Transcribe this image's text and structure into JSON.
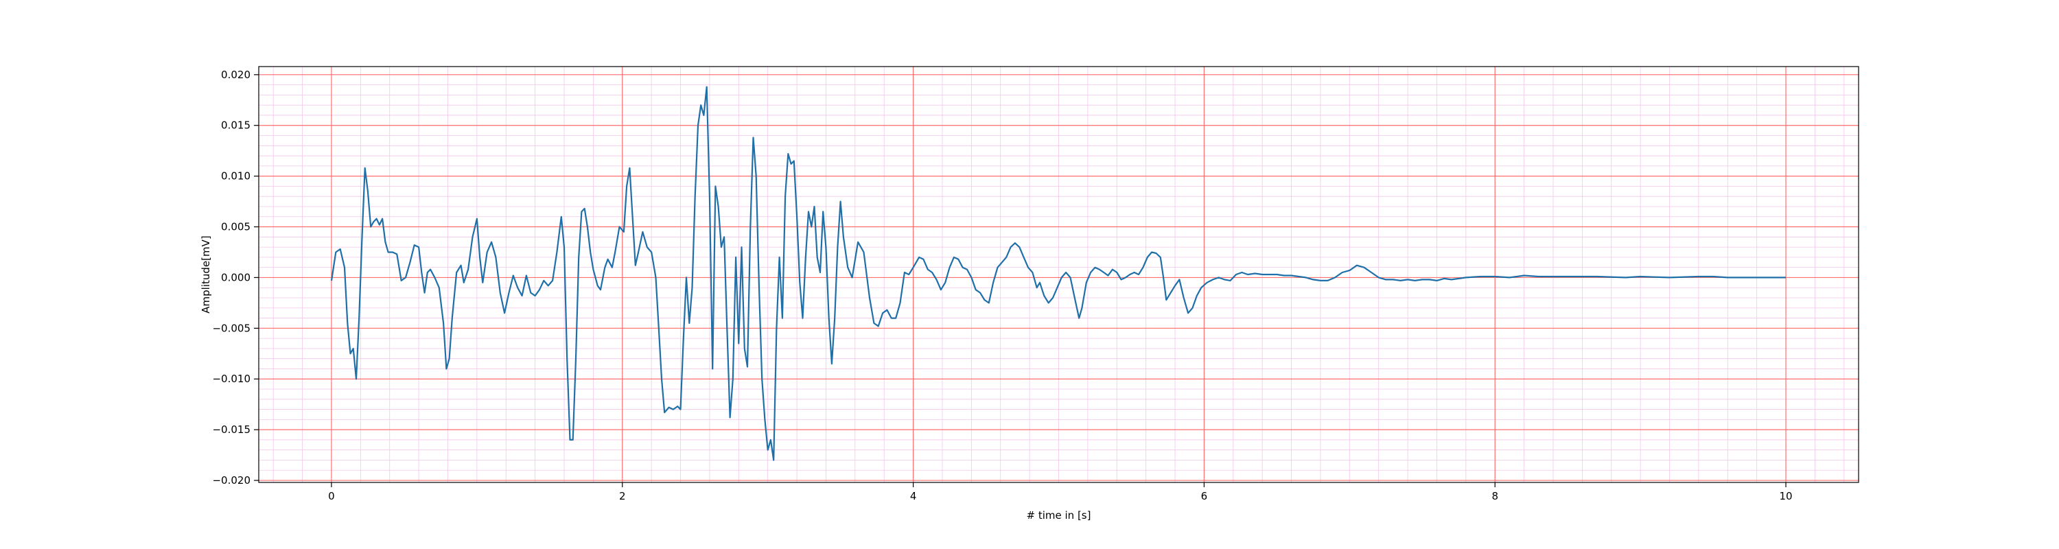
{
  "chart_data": {
    "type": "line",
    "title": "",
    "xlabel": "# time in [s]",
    "ylabel": "Amplitude[mV]",
    "xlim": [
      -0.5,
      10.5
    ],
    "ylim": [
      -0.0202,
      0.0208
    ],
    "x_ticks": [
      0,
      2,
      4,
      6,
      8,
      10
    ],
    "x_tick_labels": [
      "0",
      "2",
      "4",
      "6",
      "8",
      "10"
    ],
    "y_ticks": [
      -0.02,
      -0.015,
      -0.01,
      -0.005,
      0.0,
      0.005,
      0.01,
      0.015,
      0.02
    ],
    "y_tick_labels": [
      "−0.020",
      "−0.015",
      "−0.010",
      "−0.005",
      "0.000",
      "0.005",
      "0.010",
      "0.015",
      "0.020"
    ],
    "grid": {
      "major": true,
      "minor": true,
      "major_color": "#ff6f6f",
      "minor_color": "#f3c6ea"
    },
    "legend": "none",
    "series": [
      {
        "color": "#1f6fa8",
        "points": [
          [
            0.0,
            -0.0003
          ],
          [
            0.03,
            0.0025
          ],
          [
            0.06,
            0.0028
          ],
          [
            0.09,
            0.001
          ],
          [
            0.11,
            -0.0045
          ],
          [
            0.13,
            -0.0075
          ],
          [
            0.15,
            -0.007
          ],
          [
            0.17,
            -0.01
          ],
          [
            0.19,
            -0.004
          ],
          [
            0.21,
            0.004
          ],
          [
            0.23,
            0.0108
          ],
          [
            0.25,
            0.0085
          ],
          [
            0.27,
            0.005
          ],
          [
            0.29,
            0.0055
          ],
          [
            0.31,
            0.0058
          ],
          [
            0.33,
            0.0052
          ],
          [
            0.35,
            0.0058
          ],
          [
            0.37,
            0.0035
          ],
          [
            0.39,
            0.0025
          ],
          [
            0.42,
            0.0025
          ],
          [
            0.45,
            0.0023
          ],
          [
            0.48,
            -0.0003
          ],
          [
            0.51,
            0.0
          ],
          [
            0.54,
            0.0015
          ],
          [
            0.57,
            0.0032
          ],
          [
            0.6,
            0.003
          ],
          [
            0.62,
            0.0005
          ],
          [
            0.64,
            -0.0015
          ],
          [
            0.66,
            0.0005
          ],
          [
            0.68,
            0.0008
          ],
          [
            0.71,
            0.0
          ],
          [
            0.74,
            -0.001
          ],
          [
            0.77,
            -0.0045
          ],
          [
            0.79,
            -0.009
          ],
          [
            0.81,
            -0.008
          ],
          [
            0.83,
            -0.004
          ],
          [
            0.86,
            0.0005
          ],
          [
            0.89,
            0.0012
          ],
          [
            0.91,
            -0.0005
          ],
          [
            0.94,
            0.0008
          ],
          [
            0.97,
            0.004
          ],
          [
            1.0,
            0.0058
          ],
          [
            1.02,
            0.002
          ],
          [
            1.04,
            -0.0005
          ],
          [
            1.07,
            0.0025
          ],
          [
            1.1,
            0.0035
          ],
          [
            1.13,
            0.002
          ],
          [
            1.16,
            -0.0015
          ],
          [
            1.19,
            -0.0035
          ],
          [
            1.22,
            -0.0015
          ],
          [
            1.25,
            0.0002
          ],
          [
            1.28,
            -0.001
          ],
          [
            1.31,
            -0.0018
          ],
          [
            1.34,
            0.0002
          ],
          [
            1.37,
            -0.0015
          ],
          [
            1.4,
            -0.0018
          ],
          [
            1.43,
            -0.0012
          ],
          [
            1.46,
            -0.0003
          ],
          [
            1.49,
            -0.0008
          ],
          [
            1.52,
            -0.0003
          ],
          [
            1.55,
            0.0025
          ],
          [
            1.58,
            0.006
          ],
          [
            1.6,
            0.003
          ],
          [
            1.62,
            -0.008
          ],
          [
            1.64,
            -0.016
          ],
          [
            1.66,
            -0.016
          ],
          [
            1.68,
            -0.008
          ],
          [
            1.7,
            0.002
          ],
          [
            1.72,
            0.0065
          ],
          [
            1.74,
            0.0068
          ],
          [
            1.76,
            0.005
          ],
          [
            1.78,
            0.0025
          ],
          [
            1.8,
            0.0008
          ],
          [
            1.83,
            -0.0008
          ],
          [
            1.85,
            -0.0012
          ],
          [
            1.88,
            0.001
          ],
          [
            1.9,
            0.0018
          ],
          [
            1.93,
            0.001
          ],
          [
            1.95,
            0.0025
          ],
          [
            1.98,
            0.005
          ],
          [
            2.01,
            0.0045
          ],
          [
            2.03,
            0.009
          ],
          [
            2.05,
            0.0108
          ],
          [
            2.07,
            0.006
          ],
          [
            2.09,
            0.0012
          ],
          [
            2.11,
            0.0025
          ],
          [
            2.14,
            0.0045
          ],
          [
            2.17,
            0.003
          ],
          [
            2.2,
            0.0025
          ],
          [
            2.23,
            0.0
          ],
          [
            2.25,
            -0.005
          ],
          [
            2.27,
            -0.01
          ],
          [
            2.29,
            -0.0133
          ],
          [
            2.32,
            -0.0128
          ],
          [
            2.35,
            -0.013
          ],
          [
            2.38,
            -0.0127
          ],
          [
            2.4,
            -0.013
          ],
          [
            2.42,
            -0.006
          ],
          [
            2.44,
            0.0
          ],
          [
            2.46,
            -0.0045
          ],
          [
            2.48,
            -0.001
          ],
          [
            2.5,
            0.008
          ],
          [
            2.52,
            0.015
          ],
          [
            2.54,
            0.017
          ],
          [
            2.56,
            0.016
          ],
          [
            2.58,
            0.0188
          ],
          [
            2.6,
            0.008
          ],
          [
            2.62,
            -0.009
          ],
          [
            2.64,
            0.009
          ],
          [
            2.66,
            0.007
          ],
          [
            2.68,
            0.003
          ],
          [
            2.7,
            0.004
          ],
          [
            2.72,
            -0.005
          ],
          [
            2.74,
            -0.0138
          ],
          [
            2.76,
            -0.01
          ],
          [
            2.78,
            0.002
          ],
          [
            2.8,
            -0.0065
          ],
          [
            2.82,
            0.003
          ],
          [
            2.84,
            -0.007
          ],
          [
            2.86,
            -0.0088
          ],
          [
            2.88,
            0.005
          ],
          [
            2.9,
            0.0138
          ],
          [
            2.92,
            0.01
          ],
          [
            2.94,
            -0.001
          ],
          [
            2.96,
            -0.01
          ],
          [
            2.98,
            -0.014
          ],
          [
            3.0,
            -0.017
          ],
          [
            3.02,
            -0.016
          ],
          [
            3.04,
            -0.018
          ],
          [
            3.06,
            -0.005
          ],
          [
            3.08,
            0.002
          ],
          [
            3.1,
            -0.004
          ],
          [
            3.12,
            0.008
          ],
          [
            3.14,
            0.0122
          ],
          [
            3.16,
            0.0112
          ],
          [
            3.18,
            0.0115
          ],
          [
            3.2,
            0.006
          ],
          [
            3.22,
            -0.0005
          ],
          [
            3.24,
            -0.004
          ],
          [
            3.26,
            0.002
          ],
          [
            3.28,
            0.0065
          ],
          [
            3.3,
            0.005
          ],
          [
            3.32,
            0.007
          ],
          [
            3.34,
            0.002
          ],
          [
            3.36,
            0.0005
          ],
          [
            3.38,
            0.0065
          ],
          [
            3.4,
            0.003
          ],
          [
            3.42,
            -0.004
          ],
          [
            3.44,
            -0.0085
          ],
          [
            3.46,
            -0.004
          ],
          [
            3.48,
            0.003
          ],
          [
            3.5,
            0.0075
          ],
          [
            3.52,
            0.004
          ],
          [
            3.55,
            0.001
          ],
          [
            3.58,
            0.0
          ],
          [
            3.62,
            0.0035
          ],
          [
            3.66,
            0.0025
          ],
          [
            3.7,
            -0.002
          ],
          [
            3.73,
            -0.0045
          ],
          [
            3.76,
            -0.0048
          ],
          [
            3.79,
            -0.0035
          ],
          [
            3.82,
            -0.0032
          ],
          [
            3.85,
            -0.004
          ],
          [
            3.88,
            -0.004
          ],
          [
            3.91,
            -0.0025
          ],
          [
            3.94,
            0.0005
          ],
          [
            3.97,
            0.0003
          ],
          [
            4.0,
            0.001
          ],
          [
            4.04,
            0.002
          ],
          [
            4.07,
            0.0018
          ],
          [
            4.1,
            0.0008
          ],
          [
            4.13,
            0.0005
          ],
          [
            4.16,
            -0.0002
          ],
          [
            4.19,
            -0.0012
          ],
          [
            4.22,
            -0.0005
          ],
          [
            4.25,
            0.001
          ],
          [
            4.28,
            0.002
          ],
          [
            4.31,
            0.0018
          ],
          [
            4.34,
            0.001
          ],
          [
            4.37,
            0.0008
          ],
          [
            4.4,
            0.0
          ],
          [
            4.43,
            -0.0012
          ],
          [
            4.46,
            -0.0015
          ],
          [
            4.49,
            -0.0022
          ],
          [
            4.52,
            -0.0025
          ],
          [
            4.55,
            -0.0005
          ],
          [
            4.58,
            0.001
          ],
          [
            4.61,
            0.0015
          ],
          [
            4.64,
            0.002
          ],
          [
            4.67,
            0.003
          ],
          [
            4.7,
            0.0034
          ],
          [
            4.73,
            0.003
          ],
          [
            4.76,
            0.002
          ],
          [
            4.79,
            0.001
          ],
          [
            4.82,
            0.0005
          ],
          [
            4.85,
            -0.001
          ],
          [
            4.87,
            -0.0005
          ],
          [
            4.9,
            -0.0018
          ],
          [
            4.93,
            -0.0025
          ],
          [
            4.96,
            -0.002
          ],
          [
            4.99,
            -0.001
          ],
          [
            5.02,
            0.0
          ],
          [
            5.05,
            0.0005
          ],
          [
            5.08,
            0.0
          ],
          [
            5.11,
            -0.002
          ],
          [
            5.14,
            -0.004
          ],
          [
            5.16,
            -0.003
          ],
          [
            5.19,
            -0.0005
          ],
          [
            5.22,
            0.0005
          ],
          [
            5.25,
            0.001
          ],
          [
            5.28,
            0.0008
          ],
          [
            5.31,
            0.0005
          ],
          [
            5.34,
            0.0002
          ],
          [
            5.37,
            0.0008
          ],
          [
            5.4,
            0.0005
          ],
          [
            5.43,
            -0.0002
          ],
          [
            5.46,
            0.0
          ],
          [
            5.49,
            0.0003
          ],
          [
            5.52,
            0.0005
          ],
          [
            5.55,
            0.0003
          ],
          [
            5.58,
            0.001
          ],
          [
            5.61,
            0.002
          ],
          [
            5.64,
            0.0025
          ],
          [
            5.67,
            0.0024
          ],
          [
            5.7,
            0.002
          ],
          [
            5.72,
            0.0
          ],
          [
            5.74,
            -0.0022
          ],
          [
            5.77,
            -0.0015
          ],
          [
            5.8,
            -0.0008
          ],
          [
            5.83,
            -0.0002
          ],
          [
            5.86,
            -0.002
          ],
          [
            5.89,
            -0.0035
          ],
          [
            5.92,
            -0.003
          ],
          [
            5.95,
            -0.0018
          ],
          [
            5.98,
            -0.001
          ],
          [
            6.02,
            -0.0005
          ],
          [
            6.06,
            -0.0002
          ],
          [
            6.1,
            0.0
          ],
          [
            6.14,
            -0.0002
          ],
          [
            6.18,
            -0.0003
          ],
          [
            6.22,
            0.0003
          ],
          [
            6.26,
            0.0005
          ],
          [
            6.3,
            0.0003
          ],
          [
            6.35,
            0.0004
          ],
          [
            6.4,
            0.0003
          ],
          [
            6.45,
            0.0003
          ],
          [
            6.5,
            0.0003
          ],
          [
            6.55,
            0.0002
          ],
          [
            6.6,
            0.0002
          ],
          [
            6.65,
            0.0001
          ],
          [
            6.7,
            0.0
          ],
          [
            6.75,
            -0.0002
          ],
          [
            6.8,
            -0.0003
          ],
          [
            6.85,
            -0.0003
          ],
          [
            6.9,
            0.0
          ],
          [
            6.95,
            0.0005
          ],
          [
            7.0,
            0.0007
          ],
          [
            7.05,
            0.0012
          ],
          [
            7.1,
            0.001
          ],
          [
            7.15,
            0.0005
          ],
          [
            7.2,
            0.0
          ],
          [
            7.25,
            -0.0002
          ],
          [
            7.3,
            -0.0002
          ],
          [
            7.35,
            -0.0003
          ],
          [
            7.4,
            -0.0002
          ],
          [
            7.45,
            -0.0003
          ],
          [
            7.5,
            -0.0002
          ],
          [
            7.55,
            -0.0002
          ],
          [
            7.6,
            -0.0003
          ],
          [
            7.65,
            -0.0001
          ],
          [
            7.7,
            -0.0002
          ],
          [
            7.75,
            -0.0001
          ],
          [
            7.8,
            0.0
          ],
          [
            7.9,
            0.0001
          ],
          [
            8.0,
            0.0001
          ],
          [
            8.1,
            0.0
          ],
          [
            8.15,
            0.0001
          ],
          [
            8.2,
            0.0002
          ],
          [
            8.3,
            0.0001
          ],
          [
            8.5,
            0.0001
          ],
          [
            8.7,
            0.0001
          ],
          [
            8.9,
            0.0
          ],
          [
            9.0,
            0.0001
          ],
          [
            9.2,
            0.0
          ],
          [
            9.4,
            0.0001
          ],
          [
            9.5,
            0.0001
          ],
          [
            9.6,
            0.0
          ],
          [
            9.8,
            0.0
          ],
          [
            10.0,
            0.0
          ]
        ]
      }
    ]
  }
}
